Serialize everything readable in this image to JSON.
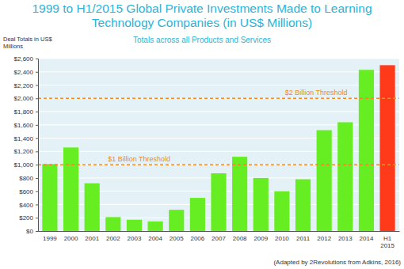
{
  "chart_data": {
    "type": "bar",
    "title": "1999 to H1/2015 Global Private Investments Made to Learning Technology Companies (in US$ Millions)",
    "subtitle": "Totals across all Products and Services",
    "y_label": "Deal Totals in US$ Millions",
    "note": "(Adapted by 2Revolutions from Adkins, 2016)",
    "categories": [
      "1999",
      "2000",
      "2001",
      "2002",
      "2003",
      "2004",
      "2005",
      "2006",
      "2007",
      "2008",
      "2009",
      "2010",
      "2011",
      "2012",
      "2013",
      "2014",
      "H1 2015"
    ],
    "values": [
      1010,
      1260,
      720,
      210,
      170,
      145,
      320,
      500,
      870,
      1120,
      800,
      600,
      780,
      1520,
      1640,
      2430,
      2500
    ],
    "colors": [
      "#66ee22",
      "#66ee22",
      "#66ee22",
      "#66ee22",
      "#66ee22",
      "#66ee22",
      "#66ee22",
      "#66ee22",
      "#66ee22",
      "#66ee22",
      "#66ee22",
      "#66ee22",
      "#66ee22",
      "#66ee22",
      "#66ee22",
      "#66ee22",
      "#ff3a1a"
    ],
    "ylim": [
      0,
      2600
    ],
    "yticks": [
      {
        "value": 0,
        "label": "$0"
      },
      {
        "value": 200,
        "label": "$200"
      },
      {
        "value": 400,
        "label": "$400"
      },
      {
        "value": 600,
        "label": "$600"
      },
      {
        "value": 800,
        "label": "$800"
      },
      {
        "value": 1000,
        "label": "$1,000"
      },
      {
        "value": 1200,
        "label": "$1,200"
      },
      {
        "value": 1400,
        "label": "$1,400"
      },
      {
        "value": 1600,
        "label": "$1,600"
      },
      {
        "value": 1800,
        "label": "$1,800"
      },
      {
        "value": 2000,
        "label": "$2,000"
      },
      {
        "value": 2200,
        "label": "$2,200"
      },
      {
        "value": 2400,
        "label": "$2,400"
      },
      {
        "value": 2600,
        "label": "$2,600"
      }
    ],
    "grid": true,
    "annotations": [
      {
        "text": "$1 Billion Threshold",
        "value": 1000
      },
      {
        "text": "$2 Billion Threshold",
        "value": 2000
      }
    ]
  }
}
